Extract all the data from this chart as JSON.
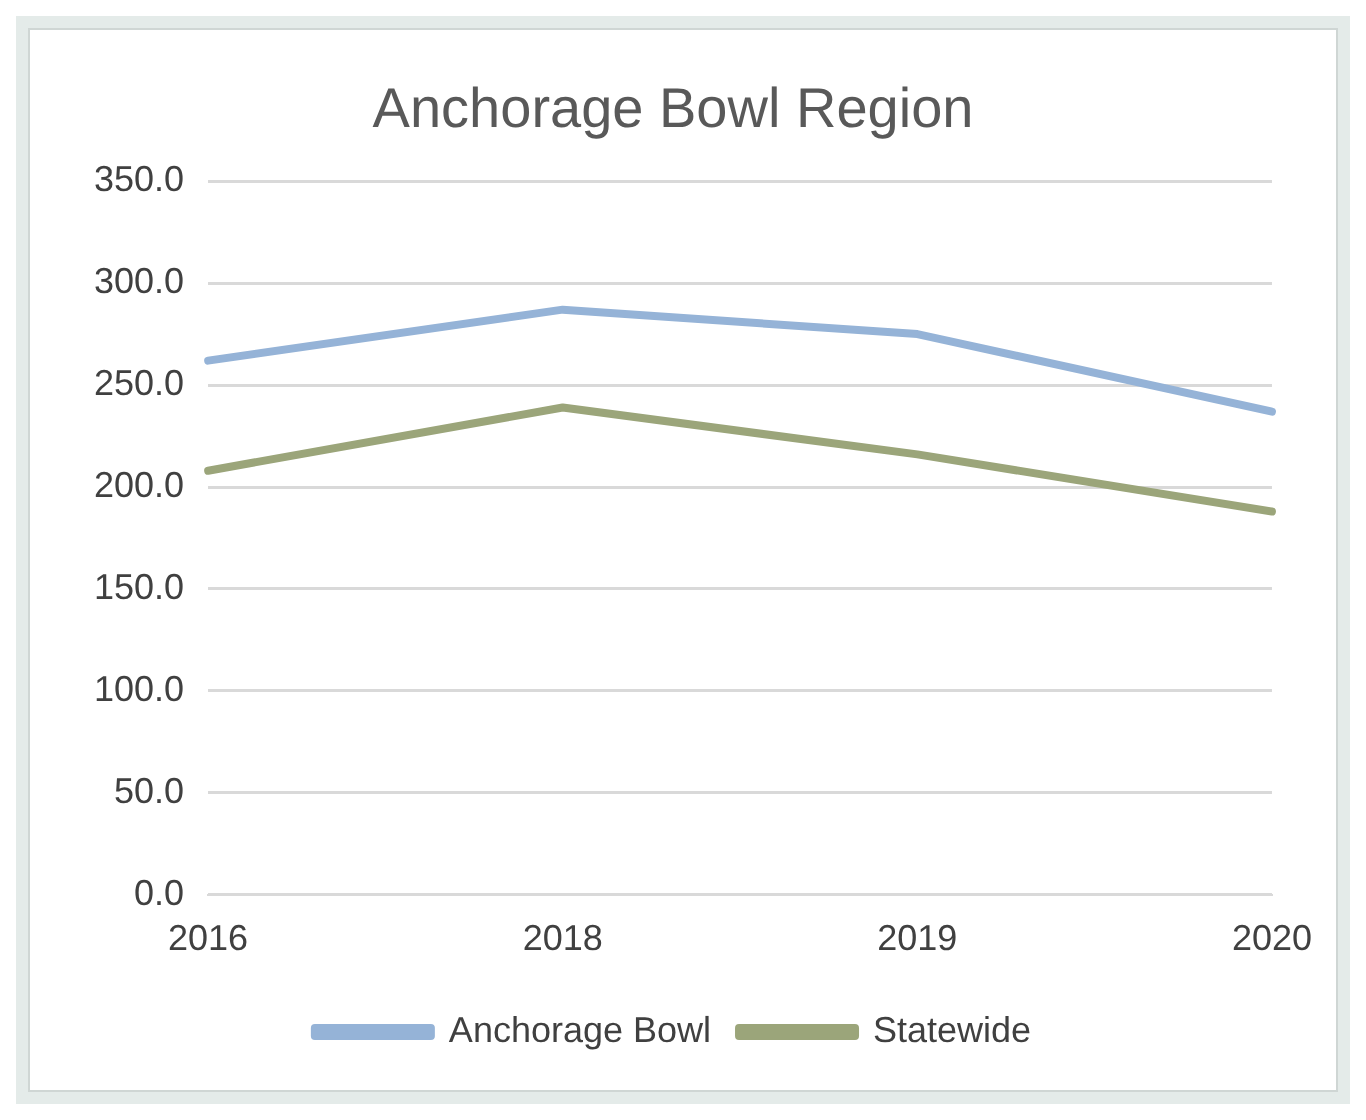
{
  "chart_data": {
    "type": "line",
    "title": "Anchorage Bowl Region",
    "categories": [
      "2016",
      "2018",
      "2019",
      "2020"
    ],
    "series": [
      {
        "name": "Anchorage Bowl",
        "color": "#95b3d7",
        "values": [
          262,
          287,
          275,
          237
        ]
      },
      {
        "name": "Statewide",
        "color": "#9ba57a",
        "values": [
          208,
          239,
          216,
          188
        ]
      }
    ],
    "ylim": [
      0,
      350
    ],
    "yticks": [
      {
        "value": 0,
        "label": "0.0"
      },
      {
        "value": 50,
        "label": "50.0"
      },
      {
        "value": 100,
        "label": "100.0"
      },
      {
        "value": 150,
        "label": "150.0"
      },
      {
        "value": 200,
        "label": "200.0"
      },
      {
        "value": 250,
        "label": "250.0"
      },
      {
        "value": 300,
        "label": "300.0"
      },
      {
        "value": 350,
        "label": "350.0"
      }
    ],
    "grid": "y",
    "legend": "bottom",
    "marker": "none",
    "line_style": "solid"
  }
}
